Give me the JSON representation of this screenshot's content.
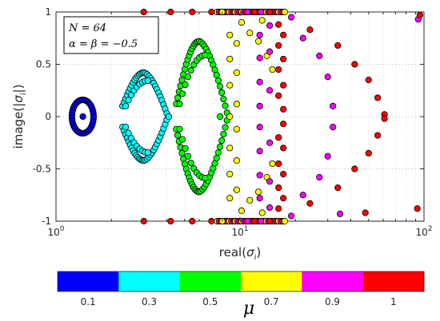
{
  "chart_data": {
    "type": "scatter",
    "xscale": "log",
    "xlim": [
      1,
      100
    ],
    "ylim": [
      -1,
      1
    ],
    "grid": true,
    "xlabel_prefix": "real(",
    "xlabel_sym": "σ",
    "xlabel_sub": "i",
    "xlabel_suffix": ")",
    "ylabel_prefix": "image(|",
    "ylabel_sym": "σ",
    "ylabel_sub": "i",
    "ylabel_suffix": "|)",
    "xticks": [
      1,
      10,
      100
    ],
    "xtick_base": "10",
    "xtick_exps": [
      "0",
      "1",
      "2"
    ],
    "yticks": [
      -1,
      -0.5,
      0,
      0.5,
      1
    ],
    "ytick_labels": [
      "-1",
      "-0.5",
      "0",
      "0.5",
      "1"
    ],
    "annotation_lines": [
      "N = 64",
      "α = β = −0.5"
    ],
    "colorbar": {
      "label": "μ",
      "colors": [
        "#0000ff",
        "#00ffff",
        "#00ff00",
        "#ffff00",
        "#ff00ff",
        "#ff0000"
      ],
      "tick_labels": [
        "0.1",
        "0.3",
        "0.5",
        "0.7",
        "0.9",
        "1"
      ]
    },
    "series": [
      {
        "mu": "0.1",
        "color": "#0000ff",
        "kind": "blob",
        "x_range": [
          1.22,
          1.6
        ],
        "center_x": 1.4,
        "y_half": 0.16
      },
      {
        "mu": "0.3",
        "color": "#00ffff",
        "kind": "lens",
        "x_left": 2.3,
        "x_right": 4.0,
        "x_peak": 3.0,
        "y_peak": 0.42,
        "y_end": 0.1,
        "n": 15,
        "extra_points": [
          {
            "x": 4.1,
            "y": 0.0
          }
        ]
      },
      {
        "mu": "0.5",
        "color": "#00ff00",
        "kind": "lens",
        "x_left": 4.5,
        "x_right": 8.5,
        "x_peak": 6.0,
        "y_peak": 0.72,
        "y_end": 0.12,
        "n": 17,
        "extra_points": [
          {
            "x": 7.8,
            "y": 0.0
          }
        ]
      },
      {
        "mu": "0.7",
        "color": "#ffff00",
        "kind": "column",
        "columns": [
          {
            "x": 8.8,
            "ys": [
              0.78,
              0.55,
              0.3,
              0.0,
              -0.3,
              -0.55,
              -0.78
            ]
          },
          {
            "x": 9.6,
            "ys": [
              0.7,
              0.42,
              0.12,
              -0.12,
              -0.42,
              -0.7
            ]
          }
        ],
        "scattered": [
          {
            "x": 10.2,
            "y": 0.9
          },
          {
            "x": 11.3,
            "y": 0.8
          },
          {
            "x": 12.6,
            "y": 0.72
          },
          {
            "x": 14.0,
            "y": 0.58
          },
          {
            "x": 10.2,
            "y": -0.9
          },
          {
            "x": 11.3,
            "y": -0.8
          },
          {
            "x": 12.6,
            "y": -0.72
          },
          {
            "x": 14.0,
            "y": -0.58
          },
          {
            "x": 13.2,
            "y": 0.92
          },
          {
            "x": 13.2,
            "y": -0.92
          },
          {
            "x": 15.0,
            "y": 0.45
          },
          {
            "x": 15.0,
            "y": -0.45
          }
        ],
        "row_points": [
          {
            "x": 8.0,
            "y": 1.0
          },
          {
            "x": 8.0,
            "y": -1.0
          }
        ]
      },
      {
        "mu": "0.9",
        "color": "#ff00ff",
        "kind": "column",
        "columns": [
          {
            "x": 12.8,
            "ys": [
              0.78,
              0.56,
              0.33,
              0.1,
              -0.1,
              -0.33,
              -0.56,
              -0.78
            ]
          },
          {
            "x": 14.5,
            "ys": [
              0.87,
              0.62,
              0.25,
              -0.25,
              -0.62,
              -0.87
            ]
          }
        ],
        "scattered": [
          {
            "x": 22.0,
            "y": 0.75
          },
          {
            "x": 27.0,
            "y": 0.58
          },
          {
            "x": 30.0,
            "y": 0.38
          },
          {
            "x": 32.0,
            "y": 0.1
          },
          {
            "x": 22.0,
            "y": -0.75
          },
          {
            "x": 27.0,
            "y": -0.58
          },
          {
            "x": 30.0,
            "y": -0.38
          },
          {
            "x": 32.0,
            "y": -0.1
          },
          {
            "x": 19.0,
            "y": 0.95
          },
          {
            "x": 19.0,
            "y": -0.95
          },
          {
            "x": 93.0,
            "y": 0.93
          },
          {
            "x": 35.0,
            "y": -0.93
          }
        ],
        "row_points": [
          {
            "x": 11.0,
            "y": 1.0
          },
          {
            "x": 11.0,
            "y": -1.0
          },
          {
            "x": 13.0,
            "y": 1.0
          },
          {
            "x": 13.0,
            "y": -1.0
          }
        ]
      },
      {
        "mu": "1",
        "color": "#ff0000",
        "kind": "column",
        "columns": [
          {
            "x": 16.2,
            "ys": [
              0.88,
              0.68,
              0.45,
              0.2,
              -0.2,
              -0.45,
              -0.68,
              -0.88
            ]
          },
          {
            "x": 17.2,
            "ys": [
              0.78,
              0.55,
              0.3,
              0.07,
              -0.07,
              -0.3,
              -0.55,
              -0.78
            ]
          }
        ],
        "scattered": [
          {
            "x": 24.0,
            "y": 0.83
          },
          {
            "x": 34.0,
            "y": 0.68
          },
          {
            "x": 42.0,
            "y": 0.5
          },
          {
            "x": 50.0,
            "y": 0.35
          },
          {
            "x": 56.0,
            "y": 0.18
          },
          {
            "x": 61.0,
            "y": 0.02
          },
          {
            "x": 24.0,
            "y": -0.83
          },
          {
            "x": 34.0,
            "y": -0.68
          },
          {
            "x": 42.0,
            "y": -0.5
          },
          {
            "x": 50.0,
            "y": -0.35
          },
          {
            "x": 56.0,
            "y": -0.18
          },
          {
            "x": 61.0,
            "y": -0.02
          },
          {
            "x": 95.0,
            "y": 0.97
          },
          {
            "x": 92.0,
            "y": -0.88
          },
          {
            "x": 48.0,
            "y": -0.92
          }
        ],
        "row_points": [
          {
            "x": 3.0,
            "y": 1.0
          },
          {
            "x": 4.2,
            "y": 1.0
          },
          {
            "x": 5.5,
            "y": 1.0
          },
          {
            "x": 7.0,
            "y": 1.0
          },
          {
            "x": 3.0,
            "y": -1.0
          },
          {
            "x": 4.2,
            "y": -1.0
          },
          {
            "x": 5.5,
            "y": -1.0
          },
          {
            "x": 7.0,
            "y": -1.0
          },
          {
            "x": 12.0,
            "y": 1.0
          },
          {
            "x": 14.5,
            "y": 1.0
          },
          {
            "x": 12.0,
            "y": -1.0
          },
          {
            "x": 14.5,
            "y": -1.0
          }
        ]
      }
    ],
    "row_fill": {
      "y_values": [
        1.0,
        -1.0
      ],
      "x_range": [
        7.5,
        17.5
      ],
      "colors": [
        "#ffff00",
        "#ff00ff",
        "#ff0000"
      ]
    }
  }
}
